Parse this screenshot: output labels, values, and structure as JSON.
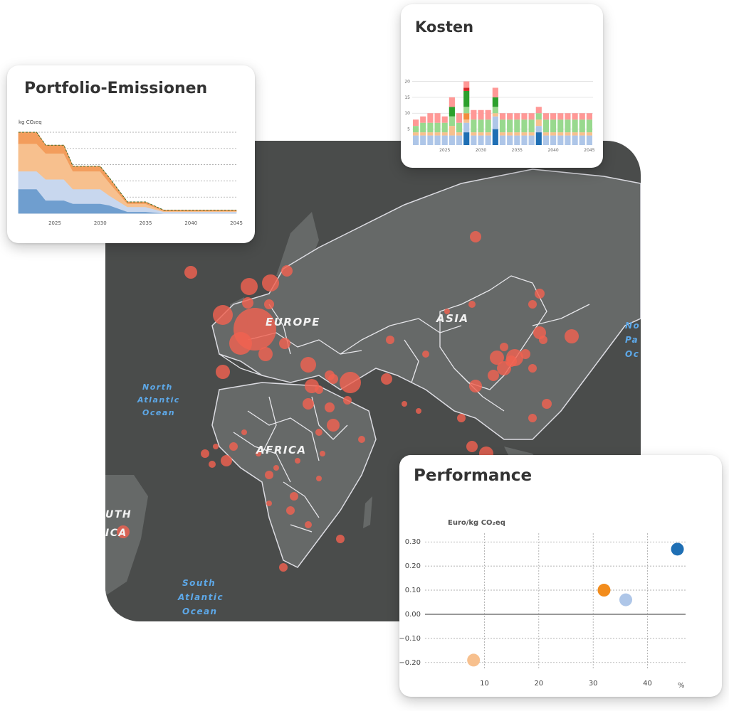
{
  "map": {
    "labels": [
      "EUROPE",
      "ASIA",
      "AFRICA",
      "SOUTH AMERICA",
      "North Atlantic Ocean",
      "South Atlantic Ocean",
      "North Pacific Ocean"
    ],
    "marker_color": "#f06150",
    "background_color": "#4a4c4b"
  },
  "emissions": {
    "title": "Portfolio-Emissionen",
    "chart_data": {
      "type": "area",
      "ylabel": "kg CO₂eq",
      "x_ticks": [
        "2025",
        "2030",
        "2035",
        "2040",
        "2045"
      ],
      "x_range": [
        2021,
        2045
      ],
      "y_range": [
        0,
        5
      ],
      "grid": true,
      "x": [
        2021,
        2023,
        2024,
        2026,
        2027,
        2030,
        2031,
        2033,
        2035,
        2037,
        2040,
        2045
      ],
      "series": [
        {
          "values": [
            1.5,
            1.5,
            0.8,
            0.8,
            0.6,
            0.6,
            0.5,
            0.1,
            0.1,
            0.0,
            0.0,
            0.0
          ],
          "color": "#6f9ecf"
        },
        {
          "values": [
            1.1,
            1.1,
            1.3,
            1.3,
            0.9,
            0.9,
            0.6,
            0.3,
            0.3,
            0.1,
            0.1,
            0.1
          ],
          "color": "#c8d7ee"
        },
        {
          "values": [
            1.7,
            1.7,
            1.6,
            1.6,
            1.1,
            1.1,
            0.8,
            0.2,
            0.2,
            0.05,
            0.05,
            0.05
          ],
          "color": "#f7c08e"
        },
        {
          "values": [
            0.7,
            0.7,
            0.5,
            0.5,
            0.3,
            0.3,
            0.3,
            0.1,
            0.1,
            0.05,
            0.05,
            0.05
          ],
          "color": "#f39d5c"
        }
      ],
      "total_line": {
        "values": [
          5.0,
          5.0,
          4.2,
          4.2,
          2.9,
          2.9,
          2.2,
          0.7,
          0.7,
          0.2,
          0.2,
          0.2
        ],
        "style": "dashed"
      }
    }
  },
  "costs": {
    "title": "Kosten",
    "chart_data": {
      "type": "bar",
      "stacked": true,
      "y_ticks": [
        "20",
        "15",
        "10",
        "5"
      ],
      "y_range": [
        0,
        21
      ],
      "x_ticks": [
        "2025",
        "2030",
        "2035",
        "2040",
        "2045"
      ],
      "categories": [
        2021,
        2022,
        2023,
        2024,
        2025,
        2026,
        2027,
        2028,
        2029,
        2030,
        2031,
        2032,
        2033,
        2034,
        2035,
        2036,
        2037,
        2038,
        2039,
        2040,
        2041,
        2042,
        2043,
        2044,
        2045
      ],
      "series": [
        {
          "color": "#1f6fb4",
          "values": [
            0,
            0,
            0,
            0,
            0,
            0,
            0,
            4,
            0,
            0,
            0,
            5,
            0,
            0,
            0,
            0,
            0,
            4,
            0,
            0,
            0,
            0,
            0,
            0,
            0
          ]
        },
        {
          "color": "#aec6e8",
          "values": [
            3,
            3,
            3,
            3,
            3,
            3,
            3,
            3,
            3,
            3,
            3,
            4,
            3,
            3,
            3,
            3,
            3,
            2,
            3,
            3,
            3,
            3,
            3,
            3,
            3
          ]
        },
        {
          "color": "#f7c08e",
          "values": [
            1,
            1,
            1,
            1,
            1,
            3,
            1,
            1,
            1,
            1,
            1,
            1,
            1,
            1,
            1,
            1,
            1,
            2,
            1,
            1,
            1,
            1,
            1,
            1,
            1
          ]
        },
        {
          "color": "#f28c3c",
          "values": [
            0,
            0,
            0,
            0,
            0,
            0,
            0,
            2,
            0,
            0,
            0,
            0,
            0,
            0,
            0,
            0,
            0,
            0,
            0,
            0,
            0,
            0,
            0,
            0,
            0
          ]
        },
        {
          "color": "#98d98e",
          "values": [
            2,
            3,
            3,
            3,
            3,
            3,
            3,
            2,
            4,
            4,
            4,
            2,
            4,
            4,
            4,
            4,
            4,
            2,
            4,
            4,
            4,
            4,
            4,
            4,
            4
          ]
        },
        {
          "color": "#2ca02c",
          "values": [
            0,
            0,
            0,
            0,
            0,
            3,
            0,
            5,
            0,
            0,
            0,
            3,
            0,
            0,
            0,
            0,
            0,
            0,
            0,
            0,
            0,
            0,
            0,
            0,
            0
          ]
        },
        {
          "color": "#d62728",
          "values": [
            0,
            0,
            0,
            0,
            0,
            0,
            0,
            1,
            0,
            0,
            0,
            0,
            0,
            0,
            0,
            0,
            0,
            0,
            0,
            0,
            0,
            0,
            0,
            0,
            0
          ]
        },
        {
          "color": "#ff9896",
          "values": [
            2,
            2,
            3,
            3,
            2,
            3,
            3,
            2,
            3,
            3,
            3,
            3,
            2,
            2,
            2,
            2,
            2,
            2,
            2,
            2,
            2,
            2,
            2,
            2,
            2
          ]
        }
      ]
    }
  },
  "performance": {
    "title": "Performance",
    "chart_data": {
      "type": "scatter",
      "ylabel": "Euro/kg CO₂eq",
      "xlabel": "%",
      "x_ticks": [
        "10",
        "20",
        "30",
        "40"
      ],
      "y_ticks": [
        "0.30",
        "0.20",
        "0.10",
        "0.00",
        "−0.10",
        "−0.20"
      ],
      "x_range": [
        3,
        47
      ],
      "y_range": [
        -0.23,
        0.33
      ],
      "grid": true,
      "points": [
        {
          "x": 45.5,
          "y": 0.27,
          "color": "#1f6fb4"
        },
        {
          "x": 32,
          "y": 0.1,
          "color": "#f28c1c"
        },
        {
          "x": 36,
          "y": 0.06,
          "color": "#aec6e8"
        },
        {
          "x": 8,
          "y": -0.19,
          "color": "#f7c08e"
        }
      ]
    }
  }
}
